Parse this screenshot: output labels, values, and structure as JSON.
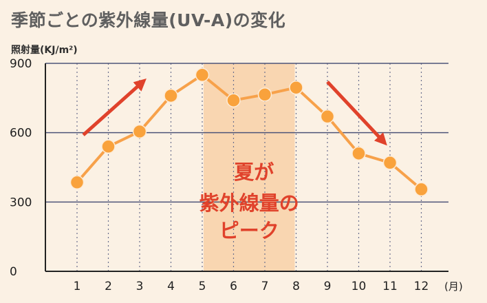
{
  "title": "季節ごとの紫外線量(UV-A)の変化",
  "ylabel": "照射量(KJ/m²)",
  "chart_data": {
    "type": "line",
    "title": "季節ごとの紫外線量(UV-A)の変化",
    "ylabel": "照射量(KJ/m²)",
    "xunit": "(月)",
    "categories": [
      "1",
      "2",
      "3",
      "4",
      "5",
      "6",
      "7",
      "8",
      "9",
      "10",
      "11",
      "12"
    ],
    "values": [
      385,
      540,
      605,
      760,
      850,
      740,
      765,
      795,
      670,
      510,
      470,
      355
    ],
    "ylim": [
      0,
      900
    ],
    "yticks": [
      0,
      300,
      600,
      900
    ],
    "grid": true,
    "highlight_range": [
      "5",
      "8"
    ],
    "annotation_lines": [
      "夏が",
      "紫外線量の",
      "ピーク"
    ],
    "colors": {
      "line": "#f7a14a",
      "marker": "#f9a23c",
      "highlight": "#f9d6b1",
      "arrow": "#e0422b",
      "annotation": "#e0422b"
    }
  }
}
